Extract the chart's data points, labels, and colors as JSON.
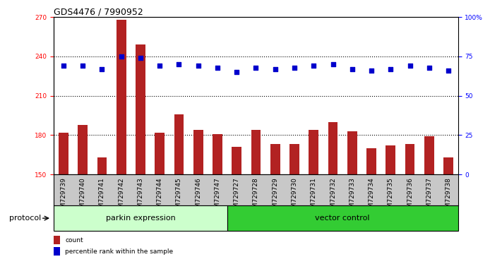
{
  "title": "GDS4476 / 7990952",
  "samples": [
    "GSM729739",
    "GSM729740",
    "GSM729741",
    "GSM729742",
    "GSM729743",
    "GSM729744",
    "GSM729745",
    "GSM729746",
    "GSM729747",
    "GSM729727",
    "GSM729728",
    "GSM729729",
    "GSM729730",
    "GSM729731",
    "GSM729732",
    "GSM729733",
    "GSM729734",
    "GSM729735",
    "GSM729736",
    "GSM729737",
    "GSM729738"
  ],
  "counts": [
    182,
    188,
    163,
    268,
    249,
    182,
    196,
    184,
    181,
    171,
    184,
    173,
    173,
    184,
    190,
    183,
    170,
    172,
    173,
    179,
    163
  ],
  "percentile_ranks": [
    69,
    69,
    67,
    75,
    74,
    69,
    70,
    69,
    68,
    65,
    68,
    67,
    68,
    69,
    70,
    67,
    66,
    67,
    69,
    68,
    66
  ],
  "bar_color": "#B22222",
  "dot_color": "#0000CC",
  "ylim_left": [
    150,
    270
  ],
  "ylim_right": [
    0,
    100
  ],
  "yticks_left": [
    150,
    180,
    210,
    240,
    270
  ],
  "yticks_right": [
    0,
    25,
    50,
    75,
    100
  ],
  "grid_values": [
    180,
    210,
    240
  ],
  "parkin_count": 9,
  "vector_count": 12,
  "parkin_label": "parkin expression",
  "vector_label": "vector control",
  "protocol_label": "protocol",
  "legend_count_label": "count",
  "legend_pct_label": "percentile rank within the sample",
  "bg_plot": "#FFFFFF",
  "bg_xlabel": "#C8C8C8",
  "bg_parkin": "#CCFFCC",
  "bg_vector": "#33CC33",
  "title_fontsize": 9,
  "tick_fontsize": 6.5,
  "label_fontsize": 8
}
